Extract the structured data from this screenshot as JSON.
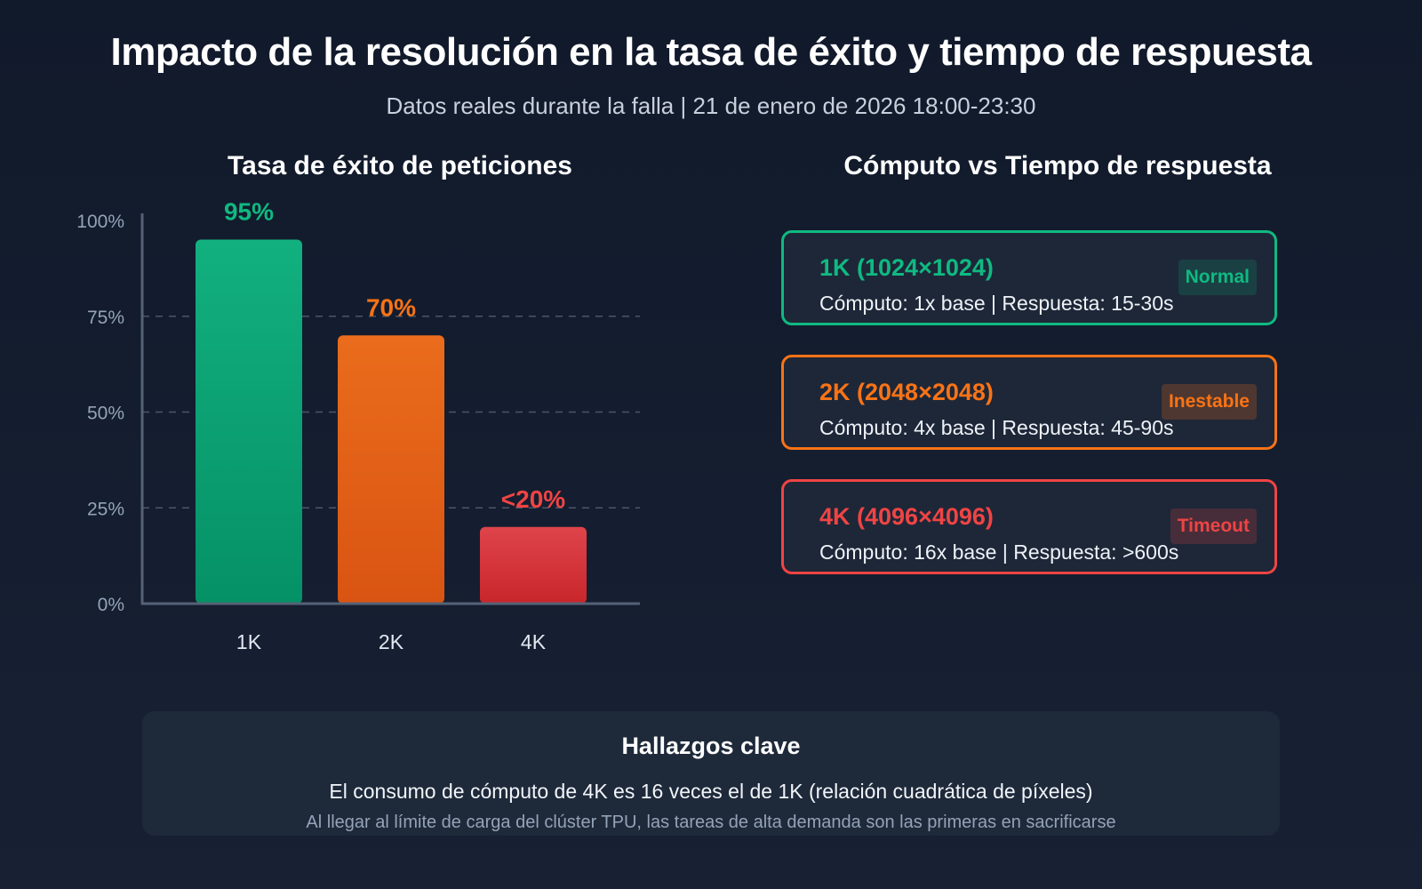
{
  "header": {
    "title": "Impacto de la resolución en la tasa de éxito y tiempo de respuesta",
    "subtitle": "Datos reales durante la falla | 21 de enero de 2026 18:00-23:30"
  },
  "chart_data": {
    "type": "bar",
    "title": "Tasa de éxito de peticiones",
    "categories": [
      "1K",
      "2K",
      "4K"
    ],
    "values": [
      95,
      70,
      20
    ],
    "data_labels": [
      "95%",
      "70%",
      "<20%"
    ],
    "colors": [
      "#10b981",
      "#f97316",
      "#ef4444"
    ],
    "ylim": [
      0,
      100
    ],
    "yticks": [
      0,
      25,
      50,
      75,
      100
    ],
    "ytick_labels": [
      "0%",
      "25%",
      "50%",
      "75%",
      "100%"
    ],
    "xlabel": "",
    "ylabel": "",
    "grid": "horizontal-dashed"
  },
  "comparison": {
    "title": "Cómputo vs Tiempo de respuesta",
    "cards": [
      {
        "title": "1K (1024×1024)",
        "desc": "Cómputo: 1x base | Respuesta: 15-30s",
        "badge": "Normal"
      },
      {
        "title": "2K (2048×2048)",
        "desc": "Cómputo: 4x base | Respuesta: 45-90s",
        "badge": "Inestable"
      },
      {
        "title": "4K (4096×4096)",
        "desc": "Cómputo: 16x base | Respuesta: >600s",
        "badge": "Timeout"
      }
    ]
  },
  "findings": {
    "title": "Hallazgos clave",
    "main": "El consumo de cómputo de 4K es 16 veces el de 1K (relación cuadrática de píxeles)",
    "note": "Al llegar al límite de carga del clúster TPU, las tareas de alta demanda son las primeras en sacrificarse"
  }
}
